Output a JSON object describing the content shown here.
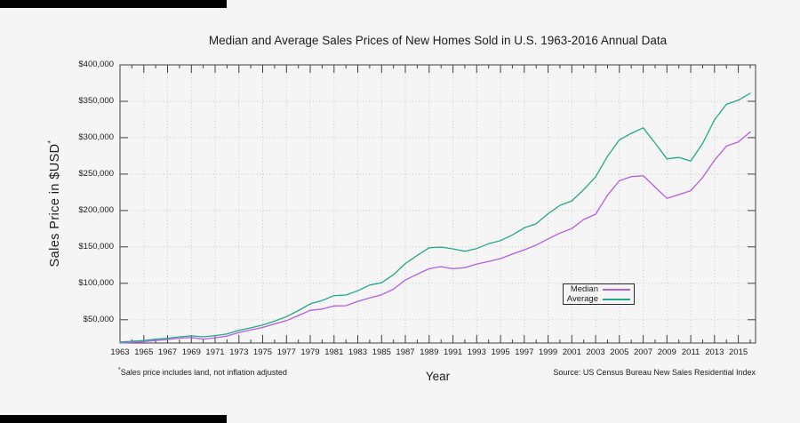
{
  "figure": {
    "title": "Median and Average Sales Prices of New Homes Sold in U.S. 1963-2016 Annual Data",
    "x_axis": {
      "label": "Year"
    },
    "y_axis": {
      "label": "Sales Price in $USD",
      "superscript": "*"
    },
    "footnote": {
      "superscript": "*",
      "text": "Sales price includes land, not inflation adjusted"
    },
    "source": "Source: US Census Bureau New Sales Residential Index",
    "legend": {
      "items": [
        {
          "label": "Median"
        },
        {
          "label": "Average"
        }
      ]
    }
  },
  "colors": {
    "background": "#f5f5f5",
    "axis": "#404040",
    "grid": "#c8c8c8",
    "text": "#1c1c1c",
    "median_line": "#b55de0",
    "average_line": "#23a78c",
    "legend_border": "#2b2b2b",
    "artifact_bar": "#000000"
  },
  "chart_data": {
    "type": "line",
    "title": "Median and Average Sales Prices of New Homes Sold in U.S. 1963-2016 Annual Data",
    "xlabel": "Year",
    "ylabel": "Sales Price in $USD*",
    "grid": true,
    "legend_position": "inside right, lower middle",
    "xlim": [
      1963,
      2016.45
    ],
    "ylim": [
      18000,
      400000
    ],
    "x": [
      1963,
      1964,
      1965,
      1966,
      1967,
      1968,
      1969,
      1970,
      1971,
      1972,
      1973,
      1974,
      1975,
      1976,
      1977,
      1978,
      1979,
      1980,
      1981,
      1982,
      1983,
      1984,
      1985,
      1986,
      1987,
      1988,
      1989,
      1990,
      1991,
      1992,
      1993,
      1994,
      1995,
      1996,
      1997,
      1998,
      1999,
      2000,
      2001,
      2002,
      2003,
      2004,
      2005,
      2006,
      2007,
      2008,
      2009,
      2010,
      2011,
      2012,
      2013,
      2014,
      2015,
      2016
    ],
    "series": [
      {
        "name": "Median",
        "color": "#b55de0",
        "values": [
          18000,
          18900,
          20000,
          21400,
          22700,
          24700,
          25600,
          23400,
          25200,
          27600,
          32500,
          35900,
          39300,
          44200,
          48800,
          55700,
          62900,
          64600,
          68900,
          69300,
          75300,
          79900,
          84300,
          92000,
          104500,
          112500,
          120000,
          122900,
          120000,
          121500,
          126500,
          130000,
          133900,
          140000,
          146000,
          152500,
          161000,
          169000,
          175200,
          187600,
          195000,
          221000,
          240900,
          246500,
          247900,
          232100,
          216700,
          221800,
          227200,
          245200,
          268900,
          288500,
          294200,
          307800
        ]
      },
      {
        "name": "Average",
        "color": "#23a78c",
        "values": [
          19300,
          20500,
          21500,
          23300,
          24600,
          26600,
          27900,
          26600,
          28300,
          30500,
          35500,
          38900,
          42600,
          48000,
          54200,
          62500,
          71800,
          76400,
          83000,
          83900,
          89800,
          97600,
          100800,
          111900,
          127200,
          138300,
          148800,
          149800,
          147200,
          144100,
          147700,
          154500,
          158700,
          166400,
          176200,
          181900,
          195600,
          207000,
          213200,
          228700,
          246300,
          274500,
          297000,
          305900,
          313600,
          292600,
          270900,
          272900,
          267900,
          292200,
          324500,
          345800,
          351400,
          360900
        ]
      }
    ],
    "x_tick_years": [
      1963,
      1965,
      1967,
      1969,
      1971,
      1973,
      1975,
      1977,
      1979,
      1981,
      1983,
      1985,
      1987,
      1989,
      1991,
      1993,
      1995,
      1997,
      1999,
      2001,
      2003,
      2005,
      2007,
      2009,
      2011,
      2013,
      2015
    ],
    "x_tick_labels": [
      "1963",
      "1965",
      "1967",
      "1969",
      "1971",
      "1973",
      "1975",
      "1977",
      "1979",
      "1981",
      "1983",
      "1985",
      "1987",
      "1989",
      "1991",
      "1993",
      "1995",
      "1997",
      "1999",
      "2001",
      "2003",
      "2005",
      "2007",
      "2009",
      "2011",
      "2013",
      "2015"
    ],
    "y_tick_values": [
      50000,
      100000,
      150000,
      200000,
      250000,
      300000,
      350000,
      400000
    ],
    "y_tick_labels": [
      "$50,000",
      "$100,000",
      "$150,000",
      "$200,000",
      "$250,000",
      "$300,000",
      "$350,000",
      "$400,000"
    ]
  }
}
